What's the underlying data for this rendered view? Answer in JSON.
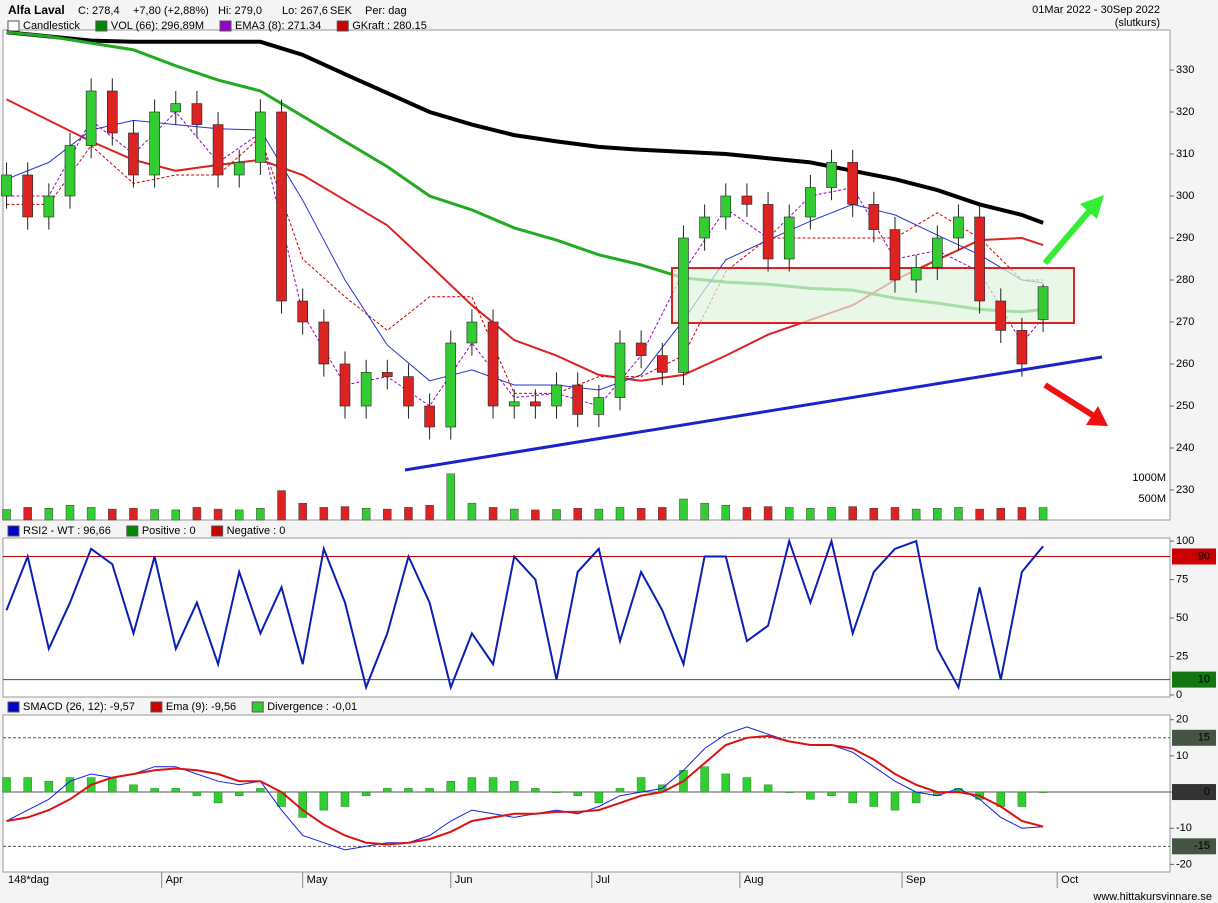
{
  "footer": "www.hittakursvinnare.se",
  "chart_data": [
    {
      "type": "candlestick",
      "title": "Alfa Laval",
      "quote": [
        "C: 278,4",
        "+7,80 (+2,88%)",
        "Hi: 279,0",
        "Lo: 267,6",
        "SEK",
        "Per: dag"
      ],
      "period": "01Mar 2022 - 30Sep 2022",
      "price_basis": "(slutkurs)",
      "period_label": "148*dag",
      "legend": [
        {
          "name": "Candlestick",
          "color": "#ffffff"
        },
        {
          "name": "VOL (66): 296,89M",
          "color": "#008800"
        },
        {
          "name": "EMA3 (8): 271.34",
          "color": "#9900cc"
        },
        {
          "name": "GKraft : 280.15",
          "color": "#cc0000"
        }
      ],
      "xlim": [
        -0.5,
        165
      ],
      "xticks": [
        {
          "value": 22,
          "label": "Apr"
        },
        {
          "value": 42,
          "label": "May"
        },
        {
          "value": 63,
          "label": "Jun"
        },
        {
          "value": 83,
          "label": "Jul"
        },
        {
          "value": 104,
          "label": "Aug"
        },
        {
          "value": 127,
          "label": "Sep"
        },
        {
          "value": 149,
          "label": "Oct"
        }
      ],
      "ylim": [
        222.86,
        339.52
      ],
      "yticks": [
        230,
        240,
        250,
        260,
        270,
        280,
        290,
        300,
        310,
        320,
        330
      ],
      "up_color": "#33cc33",
      "down_color": "#dd2222",
      "x": [
        0,
        3,
        6,
        9,
        12,
        15,
        18,
        21,
        24,
        27,
        30,
        33,
        36,
        39,
        42,
        45,
        48,
        51,
        54,
        57,
        60,
        63,
        66,
        69,
        72,
        75,
        78,
        81,
        84,
        87,
        90,
        93,
        96,
        99,
        102,
        105,
        108,
        111,
        114,
        117,
        120,
        123,
        126,
        129,
        132,
        135,
        138,
        141,
        144,
        147
      ],
      "open": [
        300,
        305,
        295,
        300,
        312,
        325,
        315,
        305,
        320,
        322,
        317,
        305,
        308,
        320,
        275,
        270,
        260,
        250,
        258,
        257,
        250,
        245,
        265,
        270,
        250,
        251,
        250,
        255,
        248,
        252,
        265,
        262,
        258,
        290,
        295,
        300,
        298,
        285,
        295,
        302,
        308,
        298,
        292,
        280,
        283,
        290,
        295,
        275,
        268,
        270.6
      ],
      "high": [
        308,
        308,
        303,
        315,
        328,
        328,
        318,
        323,
        325,
        325,
        320,
        311,
        323,
        323,
        278,
        273,
        263,
        261,
        261,
        260,
        253,
        268,
        273,
        273,
        254,
        254,
        258,
        258,
        255,
        268,
        268,
        265,
        293,
        298,
        303,
        303,
        301,
        298,
        305,
        311,
        311,
        301,
        295,
        286,
        293,
        298,
        298,
        278,
        271,
        279.0
      ],
      "low": [
        297,
        292,
        292,
        297,
        309,
        312,
        302,
        302,
        317,
        314,
        302,
        302,
        305,
        272,
        267,
        257,
        247,
        247,
        254,
        247,
        242,
        242,
        262,
        247,
        247,
        247,
        247,
        245,
        245,
        249,
        259,
        255,
        255,
        287,
        292,
        295,
        282,
        282,
        292,
        299,
        295,
        289,
        277,
        277,
        280,
        287,
        272,
        265,
        257,
        267.6
      ],
      "close": [
        305,
        295,
        300,
        312,
        325,
        315,
        305,
        320,
        322,
        317,
        305,
        308,
        320,
        275,
        270,
        260,
        250,
        258,
        257,
        250,
        245,
        265,
        270,
        250,
        251,
        250,
        255,
        248,
        252,
        265,
        262,
        258,
        290,
        295,
        300,
        298,
        285,
        295,
        302,
        308,
        298,
        292,
        280,
        283,
        290,
        295,
        275,
        268,
        260,
        278.4
      ],
      "volume": [
        250,
        300,
        280,
        350,
        300,
        260,
        280,
        250,
        240,
        300,
        260,
        240,
        280,
        700,
        400,
        300,
        320,
        280,
        260,
        300,
        350,
        1100,
        400,
        300,
        260,
        240,
        250,
        280,
        260,
        300,
        280,
        300,
        500,
        400,
        350,
        300,
        320,
        300,
        280,
        300,
        320,
        280,
        300,
        260,
        280,
        300,
        260,
        280,
        300,
        296.89
      ],
      "vlim": [
        0,
        1000
      ],
      "vticks": [
        {
          "value": 500,
          "label": "500M"
        },
        {
          "value": 1000,
          "label": "1000M"
        }
      ],
      "overlay_x": [
        0,
        6,
        12,
        18,
        24,
        30,
        36,
        42,
        48,
        54,
        60,
        66,
        72,
        78,
        84,
        90,
        96,
        102,
        108,
        114,
        120,
        126,
        132,
        138,
        144,
        147
      ],
      "overlays": [
        {
          "color": "#000000",
          "width": 4,
          "values": [
            339,
            338,
            337,
            336.7,
            336.7,
            336.7,
            336.7,
            333.6,
            329,
            324.5,
            320,
            317,
            314.5,
            313,
            311.7,
            311,
            310.5,
            310,
            309,
            308,
            306,
            304,
            301.4,
            298,
            295.5,
            293.6
          ]
        },
        {
          "color": "#22aa22",
          "width": 3,
          "values": [
            339,
            338,
            336.4,
            334.8,
            331,
            327.6,
            325,
            319,
            313,
            307,
            300,
            296.7,
            292.4,
            289.5,
            286,
            283.6,
            280.5,
            279.5,
            279,
            278,
            277.6,
            275.7,
            274.5,
            273,
            272.4,
            273
          ]
        },
        {
          "color": "#dd2222",
          "width": 2,
          "values": [
            323,
            318,
            313,
            308.6,
            306,
            307.4,
            308.6,
            305,
            299,
            293,
            283.6,
            274,
            265.7,
            262,
            257.4,
            256,
            257.4,
            262,
            267,
            270.5,
            274,
            280,
            284.8,
            289.5,
            290,
            288.3
          ]
        },
        {
          "color": "#2233cc",
          "width": 1,
          "values": [
            304,
            308,
            315.7,
            318,
            317,
            316,
            315.7,
            299,
            280,
            264.5,
            256,
            258.6,
            255,
            255,
            253.8,
            257.4,
            270.5,
            284.8,
            289.5,
            294,
            298,
            295.5,
            290.7,
            286,
            280,
            279.3
          ]
        },
        {
          "color": "#9900cc",
          "width": 1,
          "dash": true,
          "values": [
            300,
            300,
            318,
            310,
            320,
            308,
            315,
            272,
            255,
            257,
            250,
            265,
            252,
            253,
            250,
            262,
            282,
            297,
            290,
            300,
            302,
            285,
            287,
            282,
            265,
            271
          ]
        },
        {
          "color": "#cc0000",
          "width": 1,
          "dash": true,
          "values": [
            298,
            298,
            312,
            303,
            305,
            305,
            314,
            285,
            276,
            268,
            276,
            276,
            253,
            253,
            257,
            257,
            262,
            282,
            290,
            290,
            290,
            290,
            296,
            290,
            280,
            280
          ]
        }
      ]
    },
    {
      "type": "line",
      "legend": [
        {
          "name": "RSI2 - WT : 96,66",
          "color": "#0000cc"
        },
        {
          "name": "Positive : 0",
          "color": "#008800"
        },
        {
          "name": "Negative : 0",
          "color": "#cc0000"
        }
      ],
      "ylim": [
        -1.3,
        102
      ],
      "yticks": [
        0,
        25,
        50,
        75,
        100
      ],
      "levels": [
        {
          "value": 90,
          "color": "#cc0000"
        },
        {
          "value": 10,
          "color": "#117711"
        }
      ],
      "color": "#0a1fb5",
      "values": [
        55,
        90,
        30,
        60,
        95,
        85,
        40,
        90,
        30,
        60,
        20,
        80,
        40,
        70,
        20,
        95,
        60,
        5,
        40,
        90,
        60,
        5,
        40,
        20,
        90,
        75,
        10,
        80,
        95,
        35,
        80,
        55,
        20,
        90,
        90,
        35,
        45,
        100,
        60,
        100,
        40,
        80,
        95,
        100,
        30,
        5,
        70,
        10,
        80,
        96.66
      ]
    },
    {
      "type": "macd",
      "legend": [
        {
          "name": "SMACD (26, 12): -9,57",
          "color": "#0000cc"
        },
        {
          "name": "Ema (9): -9,56",
          "color": "#cc0000"
        },
        {
          "name": "Divergence : -0,01",
          "color": "#33cc33"
        }
      ],
      "ylim": [
        -22.1,
        21.3
      ],
      "yticks": [
        -20,
        -10,
        0,
        10,
        20
      ],
      "levels": [
        {
          "value": 15,
          "color": "#445544"
        },
        {
          "value": 0,
          "color": "#333333"
        },
        {
          "value": -15,
          "color": "#445544"
        }
      ],
      "series": [
        {
          "color": "#1122dd",
          "values": [
            -8,
            -5,
            -2,
            3,
            5,
            4,
            5,
            7,
            7,
            5,
            3,
            2,
            3,
            -5,
            -12,
            -14,
            -16,
            -15,
            -14,
            -14,
            -12,
            -8,
            -5,
            -6,
            -7,
            -6,
            -5,
            -6,
            -4,
            -1,
            0,
            1,
            6,
            12,
            16,
            18,
            16,
            14,
            13,
            13,
            11,
            7,
            3,
            0,
            -1,
            1,
            -2,
            -7,
            -10,
            -9.57
          ]
        },
        {
          "color": "#dd1111",
          "values": [
            -8,
            -7,
            -5,
            -2,
            2,
            4,
            5,
            6,
            6.5,
            6,
            5,
            3,
            3,
            0,
            -5,
            -9,
            -12,
            -14,
            -14.5,
            -14,
            -13,
            -11,
            -8,
            -7,
            -6,
            -6,
            -5.5,
            -5.5,
            -5,
            -3,
            -1,
            0,
            3,
            8,
            13,
            15,
            15.5,
            14,
            13,
            13,
            12,
            9,
            5,
            2,
            0,
            0,
            -1,
            -4,
            -8,
            -9.56
          ]
        }
      ],
      "hist_color": "#33cc33",
      "histogram": [
        4,
        4,
        3,
        4,
        4,
        4,
        2,
        1,
        1,
        -1,
        -3,
        -1,
        1,
        -4,
        -7,
        -5,
        -4,
        -1,
        1,
        1,
        1,
        3,
        4,
        4,
        3,
        1,
        0,
        -1,
        -3,
        1,
        4,
        2,
        6,
        7,
        5,
        4,
        2,
        0,
        -2,
        -1,
        -3,
        -4,
        -5,
        -3,
        -1,
        1,
        -2,
        -4,
        -4,
        -0.01
      ]
    }
  ]
}
